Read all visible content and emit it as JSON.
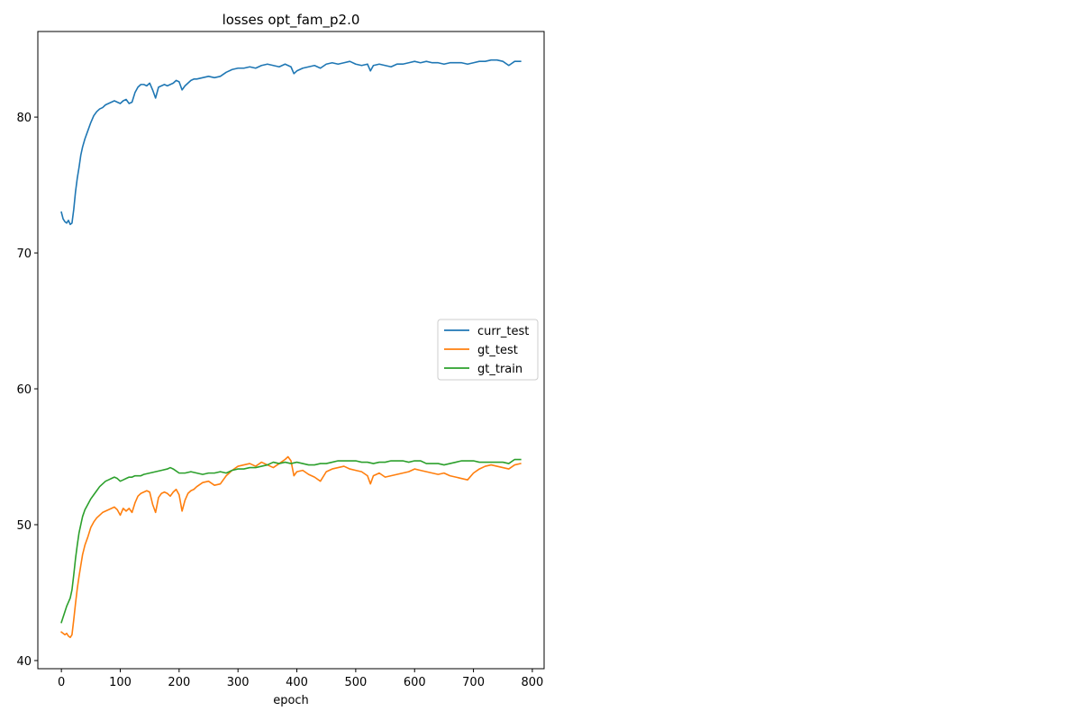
{
  "chart_data": {
    "type": "line",
    "title": "losses opt_fam_p2.0",
    "xlabel": "epoch",
    "ylabel": "",
    "xlim": [
      -40,
      820
    ],
    "ylim": [
      39.4,
      86.3
    ],
    "xticks": [
      0,
      100,
      200,
      300,
      400,
      500,
      600,
      700,
      800
    ],
    "yticks": [
      40,
      50,
      60,
      70,
      80
    ],
    "grid": false,
    "legend_position": "center-right",
    "series": [
      {
        "name": "curr_test",
        "color": "#1f77b4",
        "points": [
          [
            0,
            73.0
          ],
          [
            3,
            72.5
          ],
          [
            6,
            72.3
          ],
          [
            9,
            72.2
          ],
          [
            12,
            72.4
          ],
          [
            15,
            72.1
          ],
          [
            18,
            72.2
          ],
          [
            21,
            73.2
          ],
          [
            24,
            74.5
          ],
          [
            27,
            75.5
          ],
          [
            30,
            76.3
          ],
          [
            33,
            77.2
          ],
          [
            36,
            77.8
          ],
          [
            40,
            78.4
          ],
          [
            45,
            79.0
          ],
          [
            50,
            79.6
          ],
          [
            55,
            80.1
          ],
          [
            60,
            80.4
          ],
          [
            65,
            80.6
          ],
          [
            70,
            80.7
          ],
          [
            75,
            80.9
          ],
          [
            80,
            81.0
          ],
          [
            85,
            81.1
          ],
          [
            90,
            81.2
          ],
          [
            95,
            81.1
          ],
          [
            100,
            81.0
          ],
          [
            105,
            81.2
          ],
          [
            110,
            81.3
          ],
          [
            115,
            81.0
          ],
          [
            120,
            81.1
          ],
          [
            125,
            81.8
          ],
          [
            130,
            82.2
          ],
          [
            135,
            82.4
          ],
          [
            140,
            82.4
          ],
          [
            145,
            82.3
          ],
          [
            150,
            82.5
          ],
          [
            155,
            82.0
          ],
          [
            160,
            81.4
          ],
          [
            165,
            82.2
          ],
          [
            170,
            82.3
          ],
          [
            175,
            82.4
          ],
          [
            180,
            82.3
          ],
          [
            185,
            82.4
          ],
          [
            190,
            82.5
          ],
          [
            195,
            82.7
          ],
          [
            200,
            82.6
          ],
          [
            205,
            82.0
          ],
          [
            210,
            82.3
          ],
          [
            215,
            82.5
          ],
          [
            220,
            82.7
          ],
          [
            225,
            82.8
          ],
          [
            230,
            82.8
          ],
          [
            240,
            82.9
          ],
          [
            250,
            83.0
          ],
          [
            260,
            82.9
          ],
          [
            270,
            83.0
          ],
          [
            280,
            83.3
          ],
          [
            290,
            83.5
          ],
          [
            300,
            83.6
          ],
          [
            310,
            83.6
          ],
          [
            320,
            83.7
          ],
          [
            330,
            83.6
          ],
          [
            340,
            83.8
          ],
          [
            350,
            83.9
          ],
          [
            360,
            83.8
          ],
          [
            370,
            83.7
          ],
          [
            380,
            83.9
          ],
          [
            390,
            83.7
          ],
          [
            395,
            83.2
          ],
          [
            400,
            83.4
          ],
          [
            410,
            83.6
          ],
          [
            420,
            83.7
          ],
          [
            430,
            83.8
          ],
          [
            440,
            83.6
          ],
          [
            450,
            83.9
          ],
          [
            460,
            84.0
          ],
          [
            470,
            83.9
          ],
          [
            480,
            84.0
          ],
          [
            490,
            84.1
          ],
          [
            500,
            83.9
          ],
          [
            510,
            83.8
          ],
          [
            520,
            83.9
          ],
          [
            525,
            83.4
          ],
          [
            530,
            83.8
          ],
          [
            540,
            83.9
          ],
          [
            550,
            83.8
          ],
          [
            560,
            83.7
          ],
          [
            570,
            83.9
          ],
          [
            580,
            83.9
          ],
          [
            590,
            84.0
          ],
          [
            600,
            84.1
          ],
          [
            610,
            84.0
          ],
          [
            620,
            84.1
          ],
          [
            630,
            84.0
          ],
          [
            640,
            84.0
          ],
          [
            650,
            83.9
          ],
          [
            660,
            84.0
          ],
          [
            670,
            84.0
          ],
          [
            680,
            84.0
          ],
          [
            690,
            83.9
          ],
          [
            700,
            84.0
          ],
          [
            710,
            84.1
          ],
          [
            720,
            84.1
          ],
          [
            730,
            84.2
          ],
          [
            740,
            84.2
          ],
          [
            750,
            84.1
          ],
          [
            760,
            83.8
          ],
          [
            770,
            84.1
          ],
          [
            780,
            84.1
          ]
        ]
      },
      {
        "name": "gt_test",
        "color": "#ff7f0e",
        "points": [
          [
            0,
            42.1
          ],
          [
            3,
            42.0
          ],
          [
            6,
            41.9
          ],
          [
            9,
            42.0
          ],
          [
            12,
            41.8
          ],
          [
            15,
            41.7
          ],
          [
            18,
            41.9
          ],
          [
            21,
            43.0
          ],
          [
            24,
            44.2
          ],
          [
            27,
            45.3
          ],
          [
            30,
            46.2
          ],
          [
            33,
            47.0
          ],
          [
            36,
            47.8
          ],
          [
            40,
            48.5
          ],
          [
            45,
            49.1
          ],
          [
            50,
            49.8
          ],
          [
            55,
            50.2
          ],
          [
            60,
            50.5
          ],
          [
            65,
            50.7
          ],
          [
            70,
            50.9
          ],
          [
            75,
            51.0
          ],
          [
            80,
            51.1
          ],
          [
            85,
            51.2
          ],
          [
            90,
            51.3
          ],
          [
            95,
            51.1
          ],
          [
            100,
            50.7
          ],
          [
            105,
            51.2
          ],
          [
            110,
            51.0
          ],
          [
            115,
            51.2
          ],
          [
            120,
            50.9
          ],
          [
            125,
            51.6
          ],
          [
            130,
            52.1
          ],
          [
            135,
            52.3
          ],
          [
            140,
            52.4
          ],
          [
            145,
            52.5
          ],
          [
            150,
            52.4
          ],
          [
            155,
            51.5
          ],
          [
            160,
            50.9
          ],
          [
            165,
            52.0
          ],
          [
            170,
            52.3
          ],
          [
            175,
            52.4
          ],
          [
            180,
            52.3
          ],
          [
            185,
            52.1
          ],
          [
            190,
            52.4
          ],
          [
            195,
            52.6
          ],
          [
            200,
            52.2
          ],
          [
            205,
            51.0
          ],
          [
            210,
            51.8
          ],
          [
            215,
            52.3
          ],
          [
            220,
            52.5
          ],
          [
            225,
            52.6
          ],
          [
            230,
            52.8
          ],
          [
            240,
            53.1
          ],
          [
            250,
            53.2
          ],
          [
            260,
            52.9
          ],
          [
            270,
            53.0
          ],
          [
            280,
            53.6
          ],
          [
            290,
            54.0
          ],
          [
            300,
            54.3
          ],
          [
            310,
            54.4
          ],
          [
            320,
            54.5
          ],
          [
            330,
            54.3
          ],
          [
            340,
            54.6
          ],
          [
            350,
            54.4
          ],
          [
            360,
            54.2
          ],
          [
            370,
            54.5
          ],
          [
            380,
            54.8
          ],
          [
            385,
            55.0
          ],
          [
            390,
            54.7
          ],
          [
            395,
            53.6
          ],
          [
            400,
            53.9
          ],
          [
            410,
            54.0
          ],
          [
            420,
            53.7
          ],
          [
            430,
            53.5
          ],
          [
            440,
            53.2
          ],
          [
            450,
            53.9
          ],
          [
            460,
            54.1
          ],
          [
            470,
            54.2
          ],
          [
            480,
            54.3
          ],
          [
            490,
            54.1
          ],
          [
            500,
            54.0
          ],
          [
            510,
            53.9
          ],
          [
            520,
            53.6
          ],
          [
            525,
            53.0
          ],
          [
            530,
            53.6
          ],
          [
            540,
            53.8
          ],
          [
            550,
            53.5
          ],
          [
            560,
            53.6
          ],
          [
            570,
            53.7
          ],
          [
            580,
            53.8
          ],
          [
            590,
            53.9
          ],
          [
            600,
            54.1
          ],
          [
            610,
            54.0
          ],
          [
            620,
            53.9
          ],
          [
            630,
            53.8
          ],
          [
            640,
            53.7
          ],
          [
            650,
            53.8
          ],
          [
            660,
            53.6
          ],
          [
            670,
            53.5
          ],
          [
            680,
            53.4
          ],
          [
            690,
            53.3
          ],
          [
            700,
            53.8
          ],
          [
            710,
            54.1
          ],
          [
            720,
            54.3
          ],
          [
            730,
            54.4
          ],
          [
            740,
            54.3
          ],
          [
            750,
            54.2
          ],
          [
            760,
            54.1
          ],
          [
            770,
            54.4
          ],
          [
            780,
            54.5
          ]
        ]
      },
      {
        "name": "gt_train",
        "color": "#2ca02c",
        "points": [
          [
            0,
            42.8
          ],
          [
            3,
            43.2
          ],
          [
            6,
            43.6
          ],
          [
            9,
            44.0
          ],
          [
            12,
            44.3
          ],
          [
            15,
            44.6
          ],
          [
            18,
            45.2
          ],
          [
            21,
            46.3
          ],
          [
            24,
            47.5
          ],
          [
            27,
            48.5
          ],
          [
            30,
            49.4
          ],
          [
            33,
            50.0
          ],
          [
            36,
            50.6
          ],
          [
            40,
            51.1
          ],
          [
            45,
            51.5
          ],
          [
            50,
            51.9
          ],
          [
            55,
            52.2
          ],
          [
            60,
            52.5
          ],
          [
            65,
            52.8
          ],
          [
            70,
            53.0
          ],
          [
            75,
            53.2
          ],
          [
            80,
            53.3
          ],
          [
            85,
            53.4
          ],
          [
            90,
            53.5
          ],
          [
            95,
            53.4
          ],
          [
            100,
            53.2
          ],
          [
            105,
            53.3
          ],
          [
            110,
            53.4
          ],
          [
            115,
            53.5
          ],
          [
            120,
            53.5
          ],
          [
            125,
            53.6
          ],
          [
            130,
            53.6
          ],
          [
            135,
            53.6
          ],
          [
            140,
            53.7
          ],
          [
            150,
            53.8
          ],
          [
            160,
            53.9
          ],
          [
            170,
            54.0
          ],
          [
            180,
            54.1
          ],
          [
            185,
            54.2
          ],
          [
            190,
            54.1
          ],
          [
            200,
            53.8
          ],
          [
            210,
            53.8
          ],
          [
            220,
            53.9
          ],
          [
            230,
            53.8
          ],
          [
            240,
            53.7
          ],
          [
            250,
            53.8
          ],
          [
            260,
            53.8
          ],
          [
            270,
            53.9
          ],
          [
            280,
            53.8
          ],
          [
            290,
            54.0
          ],
          [
            300,
            54.1
          ],
          [
            310,
            54.1
          ],
          [
            320,
            54.2
          ],
          [
            330,
            54.2
          ],
          [
            340,
            54.3
          ],
          [
            350,
            54.4
          ],
          [
            360,
            54.6
          ],
          [
            370,
            54.5
          ],
          [
            380,
            54.6
          ],
          [
            390,
            54.5
          ],
          [
            400,
            54.6
          ],
          [
            410,
            54.5
          ],
          [
            420,
            54.4
          ],
          [
            430,
            54.4
          ],
          [
            440,
            54.5
          ],
          [
            450,
            54.5
          ],
          [
            460,
            54.6
          ],
          [
            470,
            54.7
          ],
          [
            480,
            54.7
          ],
          [
            490,
            54.7
          ],
          [
            500,
            54.7
          ],
          [
            510,
            54.6
          ],
          [
            520,
            54.6
          ],
          [
            530,
            54.5
          ],
          [
            540,
            54.6
          ],
          [
            550,
            54.6
          ],
          [
            560,
            54.7
          ],
          [
            570,
            54.7
          ],
          [
            580,
            54.7
          ],
          [
            590,
            54.6
          ],
          [
            600,
            54.7
          ],
          [
            610,
            54.7
          ],
          [
            620,
            54.5
          ],
          [
            630,
            54.5
          ],
          [
            640,
            54.5
          ],
          [
            650,
            54.4
          ],
          [
            660,
            54.5
          ],
          [
            670,
            54.6
          ],
          [
            680,
            54.7
          ],
          [
            690,
            54.7
          ],
          [
            700,
            54.7
          ],
          [
            710,
            54.6
          ],
          [
            720,
            54.6
          ],
          [
            730,
            54.6
          ],
          [
            740,
            54.6
          ],
          [
            750,
            54.6
          ],
          [
            760,
            54.5
          ],
          [
            770,
            54.8
          ],
          [
            780,
            54.8
          ]
        ]
      }
    ]
  }
}
